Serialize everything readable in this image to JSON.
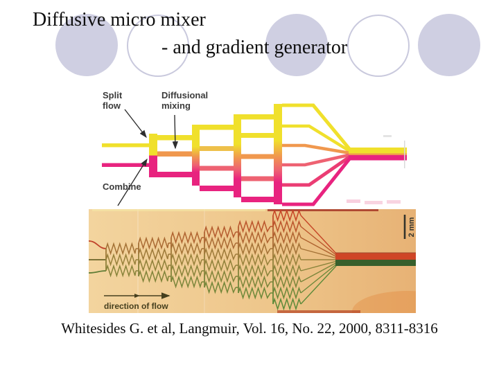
{
  "slide": {
    "title_line1": "Diffusive micro mixer",
    "title_line2": "- and gradient generator",
    "citation": "Whitesides G. et al, Langmuir, Vol. 16, No. 22, 2000, 8311-8316",
    "decor": {
      "circle_fill": "#cfcfe2",
      "circle_stroke": "#c9c9dd",
      "circles": [
        "filled",
        "outlined",
        "filled",
        "outlined",
        "filled"
      ]
    }
  },
  "mixer_diagram": {
    "labels": {
      "split1": "Split",
      "split2": "flow",
      "diff1": "Diffusional",
      "diff2": "mixing",
      "combine": "Combine"
    },
    "colors": {
      "yellow": "#f0e02c",
      "amber": "#eec04a",
      "orange": "#f0984e",
      "pink": "#ee6272",
      "rose": "#eb3d74",
      "magenta": "#e8237f"
    },
    "structure": {
      "inputs": 2,
      "split_stages": 4,
      "streams_per_stage": [
        3,
        4,
        5,
        6
      ],
      "combined_outputs": 1
    }
  },
  "photo": {
    "labels": {
      "direction_of_flow": "direction of flow",
      "scale": "2 mm"
    },
    "colors": {
      "background": "#eec68b",
      "channel_red": "#c64526",
      "channel_olive": "#97803a",
      "channel_green": "#5c8a39",
      "outlet_red": "#cf4526",
      "outlet_green": "#375f2c"
    },
    "groups": [
      {
        "rows": 3
      },
      {
        "rows": 4
      },
      {
        "rows": 5
      },
      {
        "rows": 6
      },
      {
        "rows": 7
      },
      {
        "rows": 9
      }
    ]
  }
}
